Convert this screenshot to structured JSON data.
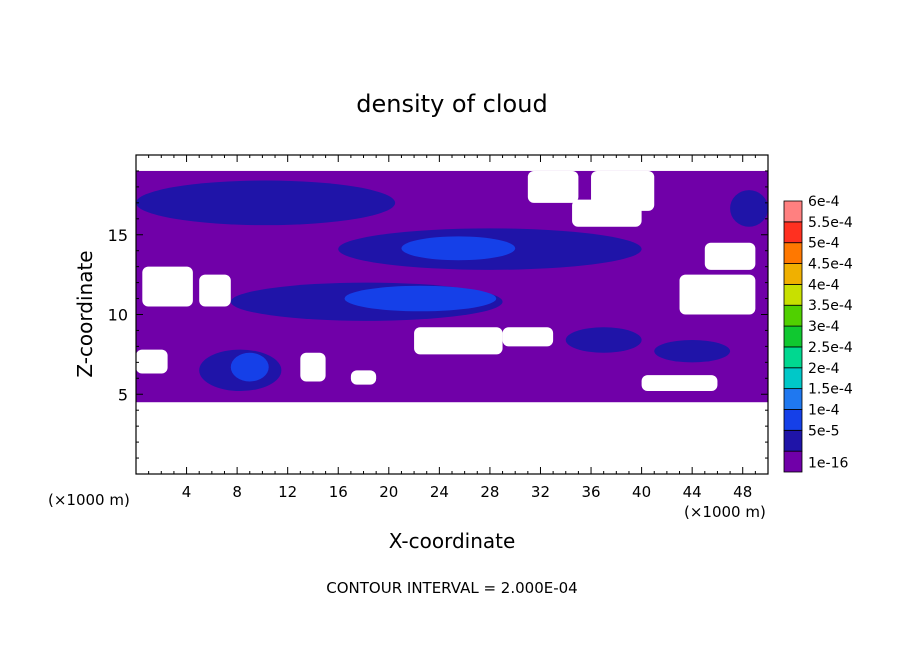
{
  "chart_data": {
    "type": "heatmap",
    "title": "density of cloud",
    "xlabel": "X-coordinate",
    "ylabel": "Z-coordinate",
    "x_unit_left": "(×1000 m)",
    "x_unit_right": "(×1000 m)",
    "xlim": [
      0,
      50
    ],
    "ylim": [
      0,
      20
    ],
    "x_ticks": [
      4,
      8,
      12,
      16,
      20,
      24,
      28,
      32,
      36,
      40,
      44,
      48
    ],
    "x_tick_labels": [
      "4",
      "8",
      "12",
      "16",
      "20",
      "24",
      "28",
      "32",
      "36",
      "40",
      "44",
      "48"
    ],
    "y_ticks": [
      5,
      10,
      15
    ],
    "y_tick_labels": [
      "5",
      "10",
      "15"
    ],
    "footer": "CONTOUR INTERVAL = 2.000E-04",
    "legend": {
      "placement": "right",
      "levels": [
        {
          "label": "1e-16",
          "color": "#7000a8"
        },
        {
          "label": "5e-5",
          "color": "#1f14a8"
        },
        {
          "label": "1e-4",
          "color": "#1540e8"
        },
        {
          "label": "1.5e-4",
          "color": "#1f78f0"
        },
        {
          "label": "2e-4",
          "color": "#00c8c8"
        },
        {
          "label": "2.5e-4",
          "color": "#00d890"
        },
        {
          "label": "3e-4",
          "color": "#10c830"
        },
        {
          "label": "3.5e-4",
          "color": "#50d000"
        },
        {
          "label": "4e-4",
          "color": "#c8e000"
        },
        {
          "label": "4.5e-4",
          "color": "#f0b000"
        },
        {
          "label": "5e-4",
          "color": "#ff7800"
        },
        {
          "label": "5.5e-4",
          "color": "#ff3020"
        },
        {
          "label": "6e-4",
          "color": "#ff8080"
        }
      ]
    },
    "cloud_band": {
      "z_bottom": 4.5,
      "z_top": 19.0,
      "base_level": "1e-16"
    },
    "features": [
      {
        "level": "5e-5",
        "x": [
          0.0,
          20.5
        ],
        "z": [
          15.6,
          18.4
        ]
      },
      {
        "level": "5e-5",
        "x": [
          16.0,
          40.0
        ],
        "z": [
          12.8,
          15.4
        ]
      },
      {
        "level": "1e-4",
        "x": [
          21.0,
          30.0
        ],
        "z": [
          13.4,
          14.9
        ]
      },
      {
        "level": "5e-5",
        "x": [
          7.5,
          29.0
        ],
        "z": [
          9.6,
          12.0
        ]
      },
      {
        "level": "1e-4",
        "x": [
          16.5,
          28.5
        ],
        "z": [
          10.2,
          11.8
        ]
      },
      {
        "level": "5e-5",
        "x": [
          34.0,
          40.0
        ],
        "z": [
          7.6,
          9.2
        ]
      },
      {
        "level": "5e-5",
        "x": [
          41.0,
          47.0
        ],
        "z": [
          7.0,
          8.4
        ]
      },
      {
        "level": "5e-5",
        "x": [
          5.0,
          11.5
        ],
        "z": [
          5.2,
          7.8
        ]
      },
      {
        "level": "1e-4",
        "x": [
          7.5,
          10.5
        ],
        "z": [
          5.8,
          7.6
        ]
      },
      {
        "level": "5e-5",
        "x": [
          47.0,
          50.0
        ],
        "z": [
          15.5,
          17.8
        ]
      }
    ],
    "clear_regions": [
      {
        "x": [
          31.0,
          35.0
        ],
        "z": [
          17.0,
          19.0
        ]
      },
      {
        "x": [
          34.5,
          40.0
        ],
        "z": [
          15.5,
          17.2
        ]
      },
      {
        "x": [
          36.0,
          41.0
        ],
        "z": [
          16.5,
          19.0
        ]
      },
      {
        "x": [
          0.5,
          4.5
        ],
        "z": [
          10.5,
          13.0
        ]
      },
      {
        "x": [
          5.0,
          7.5
        ],
        "z": [
          10.5,
          12.5
        ]
      },
      {
        "x": [
          43.0,
          49.0
        ],
        "z": [
          10.0,
          12.5
        ]
      },
      {
        "x": [
          45.0,
          49.0
        ],
        "z": [
          12.8,
          14.5
        ]
      },
      {
        "x": [
          22.0,
          29.0
        ],
        "z": [
          7.5,
          9.2
        ]
      },
      {
        "x": [
          29.0,
          33.0
        ],
        "z": [
          8.0,
          9.2
        ]
      },
      {
        "x": [
          0.0,
          2.5
        ],
        "z": [
          6.3,
          7.8
        ]
      },
      {
        "x": [
          13.0,
          15.0
        ],
        "z": [
          5.8,
          7.6
        ]
      },
      {
        "x": [
          17.0,
          19.0
        ],
        "z": [
          5.6,
          6.5
        ]
      },
      {
        "x": [
          40.0,
          46.0
        ],
        "z": [
          5.2,
          6.2
        ]
      }
    ]
  }
}
